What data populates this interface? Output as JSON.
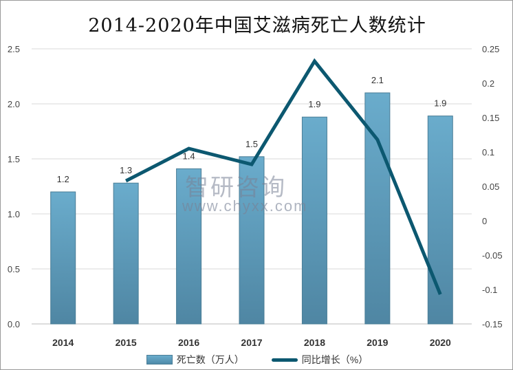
{
  "chart_data": {
    "type": "bar",
    "title": "2014-2020年中国艾滋病死亡人数统计",
    "categories": [
      "2014",
      "2015",
      "2016",
      "2017",
      "2018",
      "2019",
      "2020"
    ],
    "series": [
      {
        "name": "死亡数（万人）",
        "type": "bar",
        "axis": "left",
        "values": [
          1.2,
          1.28,
          1.41,
          1.52,
          1.88,
          2.1,
          1.89
        ],
        "labels": [
          "1.2",
          "1.3",
          "1.4",
          "1.5",
          "1.9",
          "2.1",
          "1.9"
        ],
        "color": "#5b9dbf"
      },
      {
        "name": "同比增长（%）",
        "type": "line",
        "axis": "right",
        "values": [
          null,
          0.058,
          0.105,
          0.082,
          0.232,
          0.118,
          -0.107
        ],
        "color": "#0c5870"
      }
    ],
    "ylim": [
      0,
      2.5
    ],
    "yticks": [
      "0.0",
      "0.5",
      "1.0",
      "1.5",
      "2.0",
      "2.5"
    ],
    "y2lim": [
      -0.15,
      0.25
    ],
    "y2ticks": [
      "-0.15",
      "-0.1",
      "-0.05",
      "0",
      "0.05",
      "0.1",
      "0.15",
      "0.2",
      "0.25"
    ],
    "grid": true,
    "legend": "bottom"
  },
  "watermark": {
    "name": "智研咨询",
    "url": "www.chyxx.com"
  }
}
